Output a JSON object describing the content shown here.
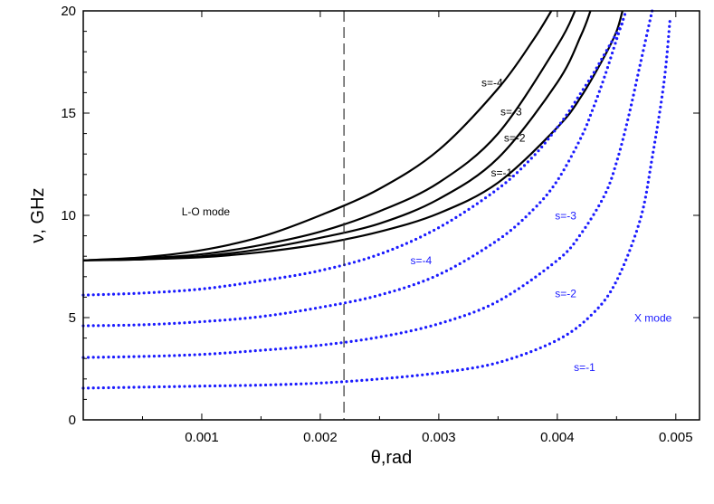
{
  "chart_data": {
    "type": "line",
    "title": "",
    "xlabel": "θ,rad",
    "ylabel": "ν, GHz",
    "xlim": [
      0.0,
      0.0052
    ],
    "ylim": [
      0,
      20
    ],
    "xticks": [
      0.001,
      0.002,
      0.003,
      0.004,
      0.005
    ],
    "xtick_labels": [
      "0.001",
      "0.002",
      "0.003",
      "0.004",
      "0.005"
    ],
    "yticks": [
      0,
      5,
      10,
      15,
      20
    ],
    "ytick_labels": [
      "0",
      "5",
      "10",
      "15",
      "20"
    ],
    "grid": false,
    "reference_line": {
      "x": 0.0022,
      "style": "dashed"
    },
    "colors": {
      "lo_mode": "#000000",
      "x_mode": "#1a1aff"
    },
    "series": [
      {
        "group": "L-O mode",
        "s": -1,
        "style": "solid",
        "x": [
          0,
          0.0005,
          0.001,
          0.0015,
          0.002,
          0.0025,
          0.003,
          0.0035,
          0.004,
          0.0042,
          0.0044,
          0.0045,
          0.00455
        ],
        "y": [
          7.8,
          7.85,
          7.95,
          8.2,
          8.6,
          9.2,
          10.1,
          11.6,
          14.3,
          15.8,
          17.8,
          19.0,
          20
        ]
      },
      {
        "group": "L-O mode",
        "s": -2,
        "style": "solid",
        "x": [
          0,
          0.0005,
          0.001,
          0.0015,
          0.002,
          0.0025,
          0.003,
          0.0035,
          0.004,
          0.0042,
          0.00428
        ],
        "y": [
          7.8,
          7.85,
          8.0,
          8.35,
          8.9,
          9.6,
          10.8,
          12.8,
          16.5,
          18.8,
          20
        ]
      },
      {
        "group": "L-O mode",
        "s": -3,
        "style": "solid",
        "x": [
          0,
          0.0005,
          0.001,
          0.0015,
          0.002,
          0.0025,
          0.003,
          0.0035,
          0.004,
          0.00415
        ],
        "y": [
          7.8,
          7.9,
          8.1,
          8.55,
          9.2,
          10.2,
          11.6,
          14.0,
          18.3,
          20
        ]
      },
      {
        "group": "L-O mode",
        "s": -4,
        "style": "solid",
        "x": [
          0,
          0.0005,
          0.001,
          0.0015,
          0.002,
          0.0025,
          0.003,
          0.0035,
          0.0038,
          0.00395
        ],
        "y": [
          7.8,
          7.95,
          8.3,
          8.95,
          10.0,
          11.3,
          13.2,
          16.2,
          18.6,
          20
        ]
      },
      {
        "group": "X mode",
        "s": -1,
        "style": "dotted",
        "x": [
          0,
          0.0005,
          0.001,
          0.0015,
          0.002,
          0.0025,
          0.003,
          0.0035,
          0.004,
          0.0043,
          0.0045,
          0.0047,
          0.0048,
          0.0049,
          0.00495
        ],
        "y": [
          1.55,
          1.6,
          1.65,
          1.7,
          1.8,
          2.0,
          2.3,
          2.8,
          3.9,
          5.2,
          6.8,
          9.8,
          12.8,
          16.5,
          19.5
        ]
      },
      {
        "group": "X mode",
        "s": -2,
        "style": "dotted",
        "x": [
          0,
          0.0005,
          0.001,
          0.0015,
          0.002,
          0.0025,
          0.003,
          0.0035,
          0.004,
          0.0042,
          0.0044,
          0.0045,
          0.0046,
          0.0047,
          0.0048
        ],
        "y": [
          3.05,
          3.1,
          3.2,
          3.4,
          3.65,
          4.05,
          4.7,
          5.8,
          7.8,
          9.1,
          11.0,
          12.6,
          14.8,
          17.4,
          20
        ]
      },
      {
        "group": "X mode",
        "s": -3,
        "style": "dotted",
        "x": [
          0,
          0.0005,
          0.001,
          0.0015,
          0.002,
          0.0025,
          0.003,
          0.0035,
          0.0038,
          0.004,
          0.0042,
          0.0043,
          0.0044,
          0.0045,
          0.00458
        ],
        "y": [
          4.6,
          4.65,
          4.8,
          5.05,
          5.5,
          6.1,
          7.1,
          8.8,
          10.3,
          11.7,
          13.8,
          15.2,
          16.8,
          18.6,
          20
        ]
      },
      {
        "group": "X mode",
        "s": -4,
        "style": "dotted",
        "x": [
          0,
          0.0005,
          0.001,
          0.0015,
          0.002,
          0.0025,
          0.003,
          0.0035,
          0.0038,
          0.004,
          0.0041,
          0.0042,
          0.0043,
          0.0044,
          0.00455
        ],
        "y": [
          6.1,
          6.2,
          6.4,
          6.8,
          7.3,
          8.1,
          9.4,
          11.3,
          12.9,
          14.3,
          15.1,
          16.0,
          16.9,
          17.9,
          19.4
        ]
      }
    ],
    "annotations": [
      {
        "text": "L-O mode",
        "x": 0.00083,
        "y": 10.0,
        "color": "#000000"
      },
      {
        "text": "s=-4",
        "x": 0.00336,
        "y": 16.3,
        "color": "#000000"
      },
      {
        "text": "s=-3",
        "x": 0.00352,
        "y": 14.9,
        "color": "#000000"
      },
      {
        "text": "s=-2",
        "x": 0.00355,
        "y": 13.6,
        "color": "#000000"
      },
      {
        "text": "s=-1",
        "x": 0.00344,
        "y": 11.9,
        "color": "#000000"
      },
      {
        "text": "s=-3",
        "x": 0.00398,
        "y": 9.8,
        "color": "#1a1aff"
      },
      {
        "text": "s=-4",
        "x": 0.00276,
        "y": 7.6,
        "color": "#1a1aff"
      },
      {
        "text": "s=-2",
        "x": 0.00398,
        "y": 6.0,
        "color": "#1a1aff"
      },
      {
        "text": "X mode",
        "x": 0.00465,
        "y": 4.8,
        "color": "#1a1aff"
      },
      {
        "text": "s=-1",
        "x": 0.00414,
        "y": 2.4,
        "color": "#1a1aff"
      }
    ]
  }
}
